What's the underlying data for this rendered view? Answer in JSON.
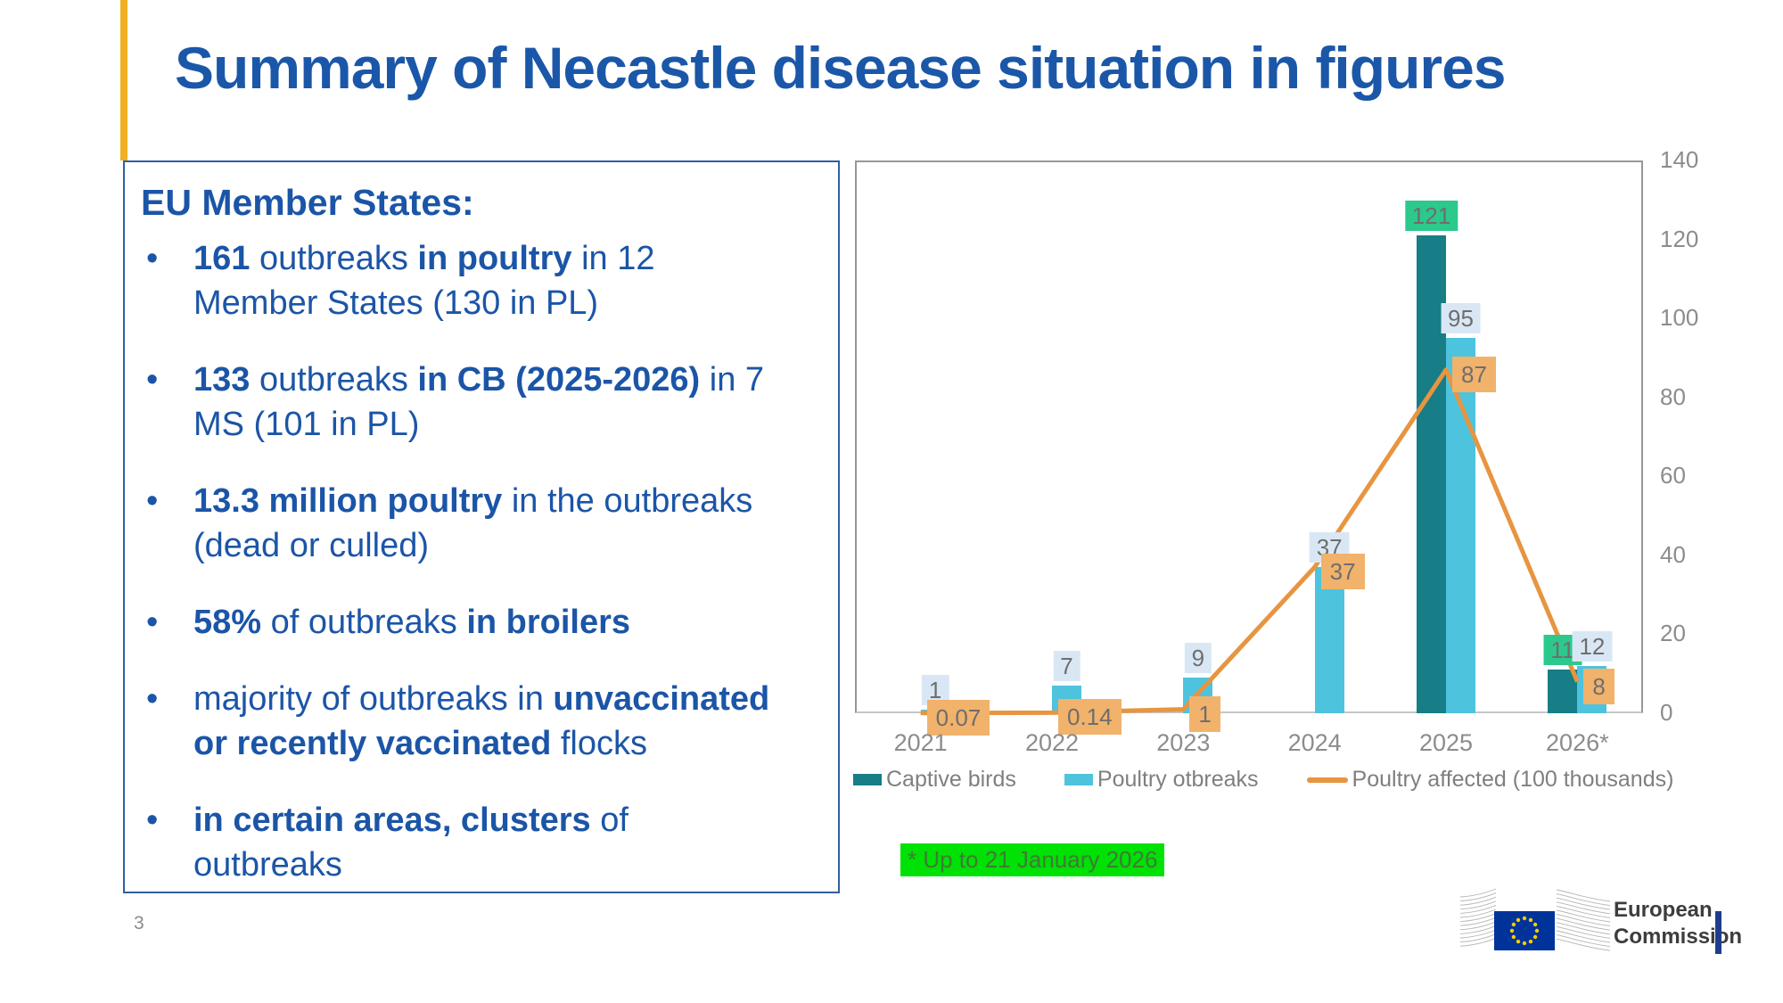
{
  "slide": {
    "title": "Summary of Necastle disease situation in figures",
    "page_number": "3",
    "accent_color": "#f0b01f",
    "title_color": "#1b57a8"
  },
  "panel": {
    "heading": "EU Member States:",
    "text_color": "#1b55a7",
    "bullets": [
      {
        "segments": [
          {
            "t": "161",
            "b": true
          },
          {
            "t": " outbreaks ",
            "b": false
          },
          {
            "t": "in poultry",
            "b": true
          },
          {
            "t": " in 12",
            "b": false,
            "br": true
          },
          {
            "t": "Member States (130 in PL)",
            "b": false
          }
        ]
      },
      {
        "segments": [
          {
            "t": "133",
            "b": true
          },
          {
            "t": " outbreaks ",
            "b": false
          },
          {
            "t": "in CB (2025-2026)",
            "b": true
          },
          {
            "t": " in 7",
            "b": false,
            "br": true
          },
          {
            "t": "MS (101 in PL)",
            "b": false
          }
        ]
      },
      {
        "segments": [
          {
            "t": "13.3 million poultry",
            "b": true
          },
          {
            "t": " in the outbreaks",
            "b": false,
            "br": true
          },
          {
            "t": "(dead or culled)",
            "b": false
          }
        ]
      },
      {
        "segments": [
          {
            "t": "58%",
            "b": true
          },
          {
            "t": " of outbreaks ",
            "b": false
          },
          {
            "t": "in broilers",
            "b": true
          }
        ]
      },
      {
        "segments": [
          {
            "t": "majority of outbreaks in ",
            "b": false
          },
          {
            "t": "unvaccinated",
            "b": true,
            "br": true
          },
          {
            "t": "or recently vaccinated",
            "b": true
          },
          {
            "t": " flocks",
            "b": false
          }
        ]
      },
      {
        "segments": [
          {
            "t": "in certain areas, clusters",
            "b": true
          },
          {
            "t": " of",
            "b": false,
            "br": true
          },
          {
            "t": "outbreaks",
            "b": false
          }
        ]
      }
    ]
  },
  "chart_data": {
    "type": "bar",
    "title": "",
    "xlabel": "",
    "ylabel": "",
    "categories": [
      "2021",
      "2022",
      "2023",
      "2024",
      "2025",
      "2026*"
    ],
    "series": [
      {
        "name": "Captive birds",
        "type": "bar",
        "color": "#177d86",
        "label_bg": "#2cc98c",
        "values": [
          null,
          null,
          null,
          null,
          121,
          11
        ],
        "labels": [
          null,
          null,
          null,
          null,
          "121",
          "11"
        ]
      },
      {
        "name": "Poultry otbreaks",
        "type": "bar",
        "color": "#4dc3de",
        "label_bg": "#d9e7f5",
        "values": [
          1,
          7,
          9,
          37,
          95,
          12
        ],
        "labels": [
          "1",
          "7",
          "9",
          "37",
          "95",
          "12"
        ]
      },
      {
        "name": "Poultry affected (100 thousands)",
        "type": "line",
        "color": "#e79540",
        "label_bg": "#f1b26c",
        "values": [
          0.07,
          0.14,
          1,
          37,
          87,
          8
        ],
        "labels": [
          "0.07",
          "0.14",
          "1",
          "37",
          "87",
          "8"
        ]
      }
    ],
    "ylim": [
      0,
      140
    ],
    "yticks": [
      140,
      120,
      100,
      80,
      60,
      40,
      20,
      0
    ],
    "yaxis_side": "right",
    "grid": false,
    "legend_position": "bottom"
  },
  "note": {
    "text": "* Up to 21 January 2026",
    "bg": "#00e106"
  },
  "footer": {
    "logo_line1": "European",
    "logo_line2": "Commission",
    "flag_blue": "#003399",
    "star_yellow": "#ffcc00"
  }
}
